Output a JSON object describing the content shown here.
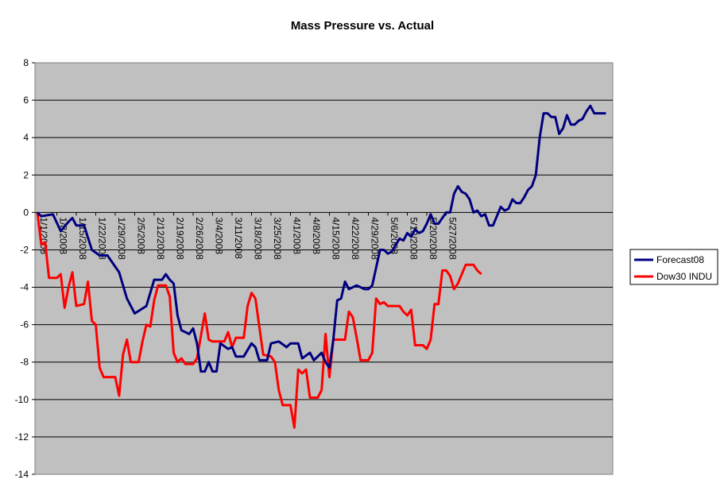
{
  "chart_data": {
    "type": "line",
    "title": "Mass Pressure vs. Actual",
    "xlabel": "",
    "ylabel": "",
    "ylim": [
      -14,
      8
    ],
    "yticks": [
      -14,
      -12,
      -10,
      -8,
      -6,
      -4,
      -2,
      0,
      2,
      4,
      6,
      8
    ],
    "x_tick_labels": [
      "1/1/2008",
      "1/8/2008",
      "1/15/2008",
      "1/22/2008",
      "1/29/2008",
      "2/5/2008",
      "2/12/2008",
      "2/19/2008",
      "2/26/2008",
      "3/4/2008",
      "3/11/2008",
      "3/18/2008",
      "3/25/2008",
      "4/1/2008",
      "4/8/2008",
      "4/15/2008",
      "4/22/2008",
      "4/29/2008",
      "5/6/2008",
      "5/13/2008",
      "5/20/2008",
      "5/27/2008"
    ],
    "grid": true,
    "plot_background": "#c0c0c0",
    "legend_position": "right",
    "series": [
      {
        "name": "Forecast08",
        "color": "#000080",
        "points": [
          [
            0,
            0
          ],
          [
            1,
            -0.2
          ],
          [
            4,
            -0.1
          ],
          [
            6,
            -1.0
          ],
          [
            8,
            -0.5
          ],
          [
            9,
            -0.3
          ],
          [
            10,
            -0.7
          ],
          [
            12,
            -0.7
          ],
          [
            14,
            -2.0
          ],
          [
            16,
            -2.3
          ],
          [
            18,
            -2.3
          ],
          [
            19,
            -2.6
          ],
          [
            21,
            -3.2
          ],
          [
            23,
            -4.6
          ],
          [
            25,
            -5.4
          ],
          [
            28,
            -5.0
          ],
          [
            30,
            -3.6
          ],
          [
            32,
            -3.6
          ],
          [
            33,
            -3.3
          ],
          [
            34,
            -3.6
          ],
          [
            35,
            -3.8
          ],
          [
            36,
            -5.5
          ],
          [
            37,
            -6.3
          ],
          [
            39,
            -6.5
          ],
          [
            40,
            -6.2
          ],
          [
            41,
            -7.0
          ],
          [
            42,
            -8.5
          ],
          [
            43,
            -8.5
          ],
          [
            44,
            -8.0
          ],
          [
            45,
            -8.5
          ],
          [
            46,
            -8.5
          ],
          [
            47,
            -7.0
          ],
          [
            49,
            -7.3
          ],
          [
            50,
            -7.2
          ],
          [
            51,
            -7.7
          ],
          [
            53,
            -7.7
          ],
          [
            55,
            -7.0
          ],
          [
            56,
            -7.2
          ],
          [
            57,
            -7.9
          ],
          [
            59,
            -7.9
          ],
          [
            60,
            -7.0
          ],
          [
            62,
            -6.9
          ],
          [
            64,
            -7.2
          ],
          [
            65,
            -7.0
          ],
          [
            67,
            -7.0
          ],
          [
            68,
            -7.8
          ],
          [
            70,
            -7.5
          ],
          [
            71,
            -7.9
          ],
          [
            73,
            -7.5
          ],
          [
            74,
            -8.0
          ],
          [
            75,
            -8.3
          ],
          [
            76,
            -6.8
          ],
          [
            77,
            -4.7
          ],
          [
            78,
            -4.6
          ],
          [
            79,
            -3.7
          ],
          [
            80,
            -4.1
          ],
          [
            82,
            -3.9
          ],
          [
            84,
            -4.1
          ],
          [
            85,
            -4.1
          ],
          [
            86,
            -3.9
          ],
          [
            88,
            -2.0
          ],
          [
            89,
            -2.0
          ],
          [
            90,
            -2.2
          ],
          [
            91,
            -2.1
          ],
          [
            93,
            -1.4
          ],
          [
            94,
            -1.5
          ],
          [
            95,
            -1.1
          ],
          [
            96,
            -1.3
          ],
          [
            97,
            -0.9
          ],
          [
            98,
            -1.1
          ],
          [
            99,
            -1.0
          ],
          [
            100,
            -0.6
          ],
          [
            101,
            -0.1
          ],
          [
            102,
            -0.6
          ],
          [
            103,
            -0.6
          ],
          [
            104,
            -0.3
          ],
          [
            105,
            0
          ],
          [
            106,
            0
          ],
          [
            107,
            1.0
          ],
          [
            108,
            1.4
          ],
          [
            109,
            1.1
          ],
          [
            110,
            1.0
          ],
          [
            111,
            0.7
          ],
          [
            112,
            0
          ],
          [
            113,
            0.1
          ],
          [
            114,
            -0.2
          ],
          [
            115,
            -0.1
          ],
          [
            116,
            -0.7
          ],
          [
            117,
            -0.7
          ],
          [
            118,
            -0.2
          ],
          [
            119,
            0.3
          ],
          [
            120,
            0.1
          ],
          [
            121,
            0.2
          ],
          [
            122,
            0.7
          ],
          [
            123,
            0.5
          ],
          [
            124,
            0.5
          ],
          [
            125,
            0.8
          ],
          [
            126,
            1.2
          ],
          [
            127,
            1.4
          ],
          [
            128,
            2.0
          ],
          [
            129,
            4.0
          ],
          [
            130,
            5.3
          ],
          [
            131,
            5.3
          ],
          [
            132,
            5.1
          ],
          [
            133,
            5.1
          ],
          [
            134,
            4.2
          ],
          [
            135,
            4.5
          ],
          [
            136,
            5.2
          ],
          [
            137,
            4.7
          ],
          [
            138,
            4.7
          ],
          [
            139,
            4.9
          ],
          [
            140,
            5.0
          ],
          [
            141,
            5.4
          ],
          [
            142,
            5.7
          ],
          [
            143,
            5.3
          ],
          [
            146,
            5.3
          ]
        ]
      },
      {
        "name": "Dow30 INDU",
        "color": "#ff0000",
        "points": [
          [
            0,
            0
          ],
          [
            1,
            -1.7
          ],
          [
            2,
            -1.6
          ],
          [
            3,
            -3.5
          ],
          [
            5,
            -3.5
          ],
          [
            6,
            -3.3
          ],
          [
            7,
            -5.1
          ],
          [
            8,
            -4.0
          ],
          [
            9,
            -3.2
          ],
          [
            10,
            -5.0
          ],
          [
            12,
            -4.9
          ],
          [
            13,
            -3.7
          ],
          [
            14,
            -5.8
          ],
          [
            15,
            -6.0
          ],
          [
            16,
            -8.3
          ],
          [
            17,
            -8.8
          ],
          [
            20,
            -8.8
          ],
          [
            21,
            -9.8
          ],
          [
            22,
            -7.6
          ],
          [
            23,
            -6.8
          ],
          [
            24,
            -8.0
          ],
          [
            26,
            -8.0
          ],
          [
            27,
            -6.9
          ],
          [
            28,
            -6.0
          ],
          [
            29,
            -6.1
          ],
          [
            30,
            -4.7
          ],
          [
            31,
            -3.9
          ],
          [
            33,
            -3.9
          ],
          [
            34,
            -4.5
          ],
          [
            35,
            -7.5
          ],
          [
            36,
            -8.0
          ],
          [
            37,
            -7.8
          ],
          [
            38,
            -8.1
          ],
          [
            40,
            -8.1
          ],
          [
            41,
            -7.8
          ],
          [
            42,
            -6.6
          ],
          [
            43,
            -5.4
          ],
          [
            44,
            -6.8
          ],
          [
            45,
            -6.9
          ],
          [
            48,
            -6.9
          ],
          [
            49,
            -6.4
          ],
          [
            50,
            -7.2
          ],
          [
            51,
            -6.7
          ],
          [
            53,
            -6.7
          ],
          [
            54,
            -5.0
          ],
          [
            55,
            -4.3
          ],
          [
            56,
            -4.6
          ],
          [
            57,
            -6.1
          ],
          [
            58,
            -7.6
          ],
          [
            60,
            -7.7
          ],
          [
            61,
            -8.0
          ],
          [
            62,
            -9.5
          ],
          [
            63,
            -10.3
          ],
          [
            65,
            -10.3
          ],
          [
            66,
            -11.5
          ],
          [
            67,
            -8.4
          ],
          [
            68,
            -8.6
          ],
          [
            69,
            -8.4
          ],
          [
            70,
            -9.9
          ],
          [
            72,
            -9.9
          ],
          [
            73,
            -9.5
          ],
          [
            74,
            -6.5
          ],
          [
            75,
            -8.8
          ],
          [
            76,
            -6.8
          ],
          [
            79,
            -6.8
          ],
          [
            80,
            -5.3
          ],
          [
            81,
            -5.6
          ],
          [
            82,
            -6.7
          ],
          [
            83,
            -7.9
          ],
          [
            85,
            -7.9
          ],
          [
            86,
            -7.5
          ],
          [
            87,
            -4.6
          ],
          [
            88,
            -4.9
          ],
          [
            89,
            -4.8
          ],
          [
            90,
            -5.0
          ],
          [
            93,
            -5.0
          ],
          [
            94,
            -5.3
          ],
          [
            95,
            -5.5
          ],
          [
            96,
            -5.2
          ],
          [
            97,
            -7.1
          ],
          [
            99,
            -7.1
          ],
          [
            100,
            -7.3
          ],
          [
            101,
            -6.8
          ],
          [
            102,
            -4.9
          ],
          [
            103,
            -4.9
          ],
          [
            104,
            -3.1
          ],
          [
            105,
            -3.1
          ],
          [
            106,
            -3.4
          ],
          [
            107,
            -4.1
          ],
          [
            108,
            -3.8
          ],
          [
            109,
            -3.3
          ],
          [
            110,
            -2.8
          ],
          [
            112,
            -2.8
          ],
          [
            113,
            -3.1
          ],
          [
            114,
            -3.3
          ]
        ]
      }
    ]
  }
}
